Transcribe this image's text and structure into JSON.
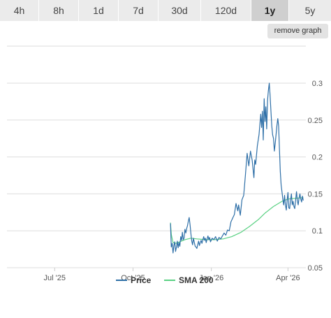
{
  "range_tabs": [
    {
      "label": "4h",
      "active": false
    },
    {
      "label": "8h",
      "active": false
    },
    {
      "label": "1d",
      "active": false
    },
    {
      "label": "7d",
      "active": false
    },
    {
      "label": "30d",
      "active": false
    },
    {
      "label": "120d",
      "active": false
    },
    {
      "label": "1y",
      "active": true
    },
    {
      "label": "5y",
      "active": false
    }
  ],
  "remove_graph_label": "remove graph",
  "colors": {
    "price": "#2e6fa7",
    "sma": "#5ad183",
    "grid": "#dddddd",
    "active_tab": "#cfcfcf",
    "tab": "#ebebeb"
  },
  "chart_data": {
    "type": "line",
    "x_ticks": [
      {
        "date": "2025-07-01",
        "label": "Jul '25"
      },
      {
        "date": "2025-10-01",
        "label": "Oct '25"
      },
      {
        "date": "2026-01-01",
        "label": "Jan '26"
      },
      {
        "date": "2026-04-01",
        "label": "Apr '26"
      }
    ],
    "y_ticks": [
      "0.3",
      "0.25",
      "0.2",
      "0.15",
      "0.1",
      "0.05"
    ],
    "ylim": [
      0.05,
      0.3
    ],
    "xlim": [
      "2025-05-06",
      "2026-04-22"
    ],
    "grid": true,
    "legend_position": "bottom",
    "series": [
      {
        "name": "Price",
        "color": "#2e6fa7",
        "points": [
          [
            "2025-11-14",
            0.11
          ],
          [
            "2025-11-15",
            0.078
          ],
          [
            "2025-11-16",
            0.083
          ],
          [
            "2025-11-17",
            0.07
          ],
          [
            "2025-11-18",
            0.08
          ],
          [
            "2025-11-19",
            0.085
          ],
          [
            "2025-11-20",
            0.072
          ],
          [
            "2025-11-21",
            0.078
          ],
          [
            "2025-11-22",
            0.086
          ],
          [
            "2025-11-23",
            0.077
          ],
          [
            "2025-11-24",
            0.084
          ],
          [
            "2025-11-25",
            0.079
          ],
          [
            "2025-11-26",
            0.092
          ],
          [
            "2025-11-27",
            0.087
          ],
          [
            "2025-11-28",
            0.098
          ],
          [
            "2025-11-29",
            0.088
          ],
          [
            "2025-11-30",
            0.09
          ],
          [
            "2025-12-01",
            0.102
          ],
          [
            "2025-12-02",
            0.097
          ],
          [
            "2025-12-03",
            0.103
          ],
          [
            "2025-12-04",
            0.107
          ],
          [
            "2025-12-05",
            0.113
          ],
          [
            "2025-12-06",
            0.118
          ],
          [
            "2025-12-07",
            0.108
          ],
          [
            "2025-12-08",
            0.096
          ],
          [
            "2025-12-09",
            0.086
          ],
          [
            "2025-12-10",
            0.081
          ],
          [
            "2025-12-11",
            0.09
          ],
          [
            "2025-12-12",
            0.084
          ],
          [
            "2025-12-13",
            0.079
          ],
          [
            "2025-12-14",
            0.078
          ],
          [
            "2025-12-15",
            0.076
          ],
          [
            "2025-12-16",
            0.081
          ],
          [
            "2025-12-17",
            0.086
          ],
          [
            "2025-12-18",
            0.08
          ],
          [
            "2025-12-19",
            0.084
          ],
          [
            "2025-12-20",
            0.087
          ],
          [
            "2025-12-21",
            0.083
          ],
          [
            "2025-12-22",
            0.088
          ],
          [
            "2025-12-23",
            0.092
          ],
          [
            "2025-12-24",
            0.087
          ],
          [
            "2025-12-25",
            0.09
          ],
          [
            "2025-12-26",
            0.084
          ],
          [
            "2025-12-27",
            0.089
          ],
          [
            "2025-12-28",
            0.093
          ],
          [
            "2025-12-29",
            0.088
          ],
          [
            "2025-12-30",
            0.091
          ],
          [
            "2025-12-31",
            0.085
          ],
          [
            "2026-01-02",
            0.09
          ],
          [
            "2026-01-04",
            0.088
          ],
          [
            "2026-01-06",
            0.092
          ],
          [
            "2026-01-08",
            0.086
          ],
          [
            "2026-01-10",
            0.091
          ],
          [
            "2026-01-12",
            0.089
          ],
          [
            "2026-01-14",
            0.093
          ],
          [
            "2026-01-16",
            0.097
          ],
          [
            "2026-01-18",
            0.094
          ],
          [
            "2026-01-20",
            0.101
          ],
          [
            "2026-01-22",
            0.1
          ],
          [
            "2026-01-24",
            0.112
          ],
          [
            "2026-01-26",
            0.117
          ],
          [
            "2026-01-28",
            0.122
          ],
          [
            "2026-01-30",
            0.137
          ],
          [
            "2026-02-01",
            0.127
          ],
          [
            "2026-02-02",
            0.135
          ],
          [
            "2026-02-04",
            0.121
          ],
          [
            "2026-02-06",
            0.142
          ],
          [
            "2026-02-08",
            0.148
          ],
          [
            "2026-02-10",
            0.175
          ],
          [
            "2026-02-12",
            0.205
          ],
          [
            "2026-02-14",
            0.188
          ],
          [
            "2026-02-16",
            0.208
          ],
          [
            "2026-02-18",
            0.195
          ],
          [
            "2026-02-20",
            0.172
          ],
          [
            "2026-02-21",
            0.196
          ],
          [
            "2026-02-22",
            0.19
          ],
          [
            "2026-02-24",
            0.215
          ],
          [
            "2026-02-26",
            0.23
          ],
          [
            "2026-02-28",
            0.258
          ],
          [
            "2026-03-01",
            0.24
          ],
          [
            "2026-03-02",
            0.262
          ],
          [
            "2026-03-03",
            0.223
          ],
          [
            "2026-03-04",
            0.279
          ],
          [
            "2026-03-05",
            0.248
          ],
          [
            "2026-03-06",
            0.268
          ],
          [
            "2026-03-07",
            0.238
          ],
          [
            "2026-03-08",
            0.276
          ],
          [
            "2026-03-09",
            0.29
          ],
          [
            "2026-03-10",
            0.3
          ],
          [
            "2026-03-11",
            0.283
          ],
          [
            "2026-03-12",
            0.262
          ],
          [
            "2026-03-13",
            0.242
          ],
          [
            "2026-03-14",
            0.23
          ],
          [
            "2026-03-15",
            0.225
          ],
          [
            "2026-03-16",
            0.208
          ],
          [
            "2026-03-17",
            0.218
          ],
          [
            "2026-03-18",
            0.23
          ],
          [
            "2026-03-19",
            0.242
          ],
          [
            "2026-03-20",
            0.252
          ],
          [
            "2026-03-21",
            0.242
          ],
          [
            "2026-03-22",
            0.21
          ],
          [
            "2026-03-23",
            0.18
          ],
          [
            "2026-03-24",
            0.162
          ],
          [
            "2026-03-25",
            0.152
          ],
          [
            "2026-03-26",
            0.142
          ],
          [
            "2026-03-27",
            0.135
          ],
          [
            "2026-03-28",
            0.148
          ],
          [
            "2026-03-29",
            0.135
          ],
          [
            "2026-03-30",
            0.128
          ],
          [
            "2026-03-31",
            0.142
          ],
          [
            "2026-04-01",
            0.152
          ],
          [
            "2026-04-02",
            0.131
          ],
          [
            "2026-04-03",
            0.13
          ],
          [
            "2026-04-04",
            0.142
          ],
          [
            "2026-04-05",
            0.15
          ],
          [
            "2026-04-06",
            0.135
          ],
          [
            "2026-04-07",
            0.14
          ],
          [
            "2026-04-08",
            0.133
          ],
          [
            "2026-04-09",
            0.13
          ],
          [
            "2026-04-10",
            0.142
          ],
          [
            "2026-04-11",
            0.153
          ],
          [
            "2026-04-12",
            0.141
          ],
          [
            "2026-04-13",
            0.135
          ],
          [
            "2026-04-14",
            0.144
          ],
          [
            "2026-04-15",
            0.15
          ],
          [
            "2026-04-16",
            0.143
          ],
          [
            "2026-04-17",
            0.139
          ],
          [
            "2026-04-18",
            0.147
          ],
          [
            "2026-04-19",
            0.141
          ]
        ]
      },
      {
        "name": "SMA 200",
        "color": "#5ad183",
        "points": [
          [
            "2025-11-14",
            0.111
          ],
          [
            "2025-11-15",
            0.095
          ],
          [
            "2025-11-17",
            0.084
          ],
          [
            "2025-11-20",
            0.083
          ],
          [
            "2025-11-25",
            0.085
          ],
          [
            "2025-12-01",
            0.088
          ],
          [
            "2025-12-08",
            0.09
          ],
          [
            "2025-12-15",
            0.089
          ],
          [
            "2025-12-25",
            0.088
          ],
          [
            "2026-01-05",
            0.088
          ],
          [
            "2026-01-15",
            0.089
          ],
          [
            "2026-01-25",
            0.092
          ],
          [
            "2026-02-05",
            0.098
          ],
          [
            "2026-02-15",
            0.106
          ],
          [
            "2026-02-25",
            0.115
          ],
          [
            "2026-03-05",
            0.124
          ],
          [
            "2026-03-15",
            0.133
          ],
          [
            "2026-03-25",
            0.14
          ],
          [
            "2026-04-01",
            0.143
          ],
          [
            "2026-04-10",
            0.144
          ],
          [
            "2026-04-19",
            0.145
          ]
        ]
      }
    ]
  }
}
